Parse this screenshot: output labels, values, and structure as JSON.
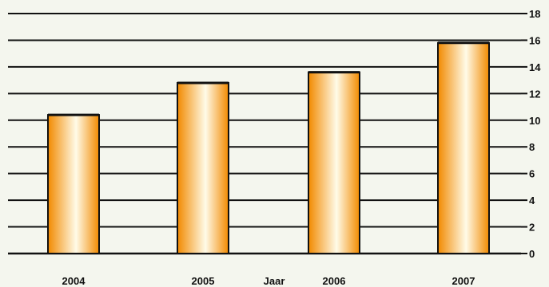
{
  "chart_data": {
    "type": "bar",
    "categories": [
      "2004",
      "2005",
      "2006",
      "2007"
    ],
    "values": [
      10.4,
      12.8,
      13.6,
      15.8
    ],
    "title": "",
    "xlabel": "Jaar",
    "ylabel": "",
    "ylim": [
      0,
      18
    ],
    "yticks": [
      0,
      2,
      4,
      6,
      8,
      10,
      12,
      14,
      16,
      18
    ],
    "y_axis_side": "right",
    "grid": true,
    "legend": "none",
    "colors": {
      "background": "#f4f6ee",
      "bar_edge": "#f28a00",
      "bar_center": "#fffbe8",
      "bar_outline": "#111111",
      "grid": "#111111"
    }
  }
}
